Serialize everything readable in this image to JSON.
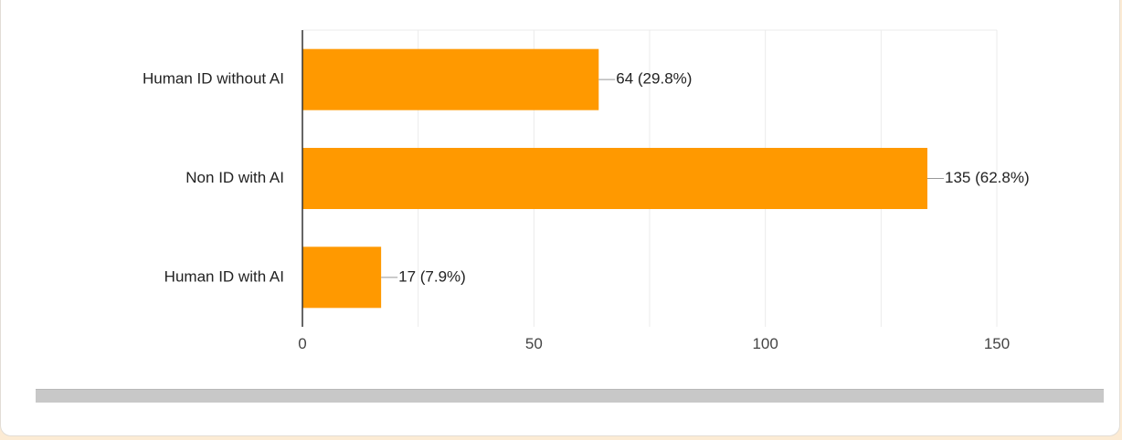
{
  "chart_data": {
    "type": "bar",
    "orientation": "horizontal",
    "title": "",
    "xlabel": "",
    "ylabel": "",
    "categories": [
      "Human ID without AI",
      "Non ID with AI",
      "Human ID with AI"
    ],
    "values": [
      64,
      135,
      17
    ],
    "data_labels": [
      "64 (29.8%)",
      "135 (62.8%)",
      "17 (7.9%)"
    ],
    "xlim": [
      0,
      150
    ],
    "xticks": [
      0,
      50,
      100,
      150
    ],
    "xtick_labels": [
      "0",
      "50",
      "100",
      "150"
    ],
    "grid": true,
    "bar_color": "#ff9900",
    "gridline_color": "#ebebeb",
    "axis_color": "#333333",
    "leader_color": "#999999"
  }
}
